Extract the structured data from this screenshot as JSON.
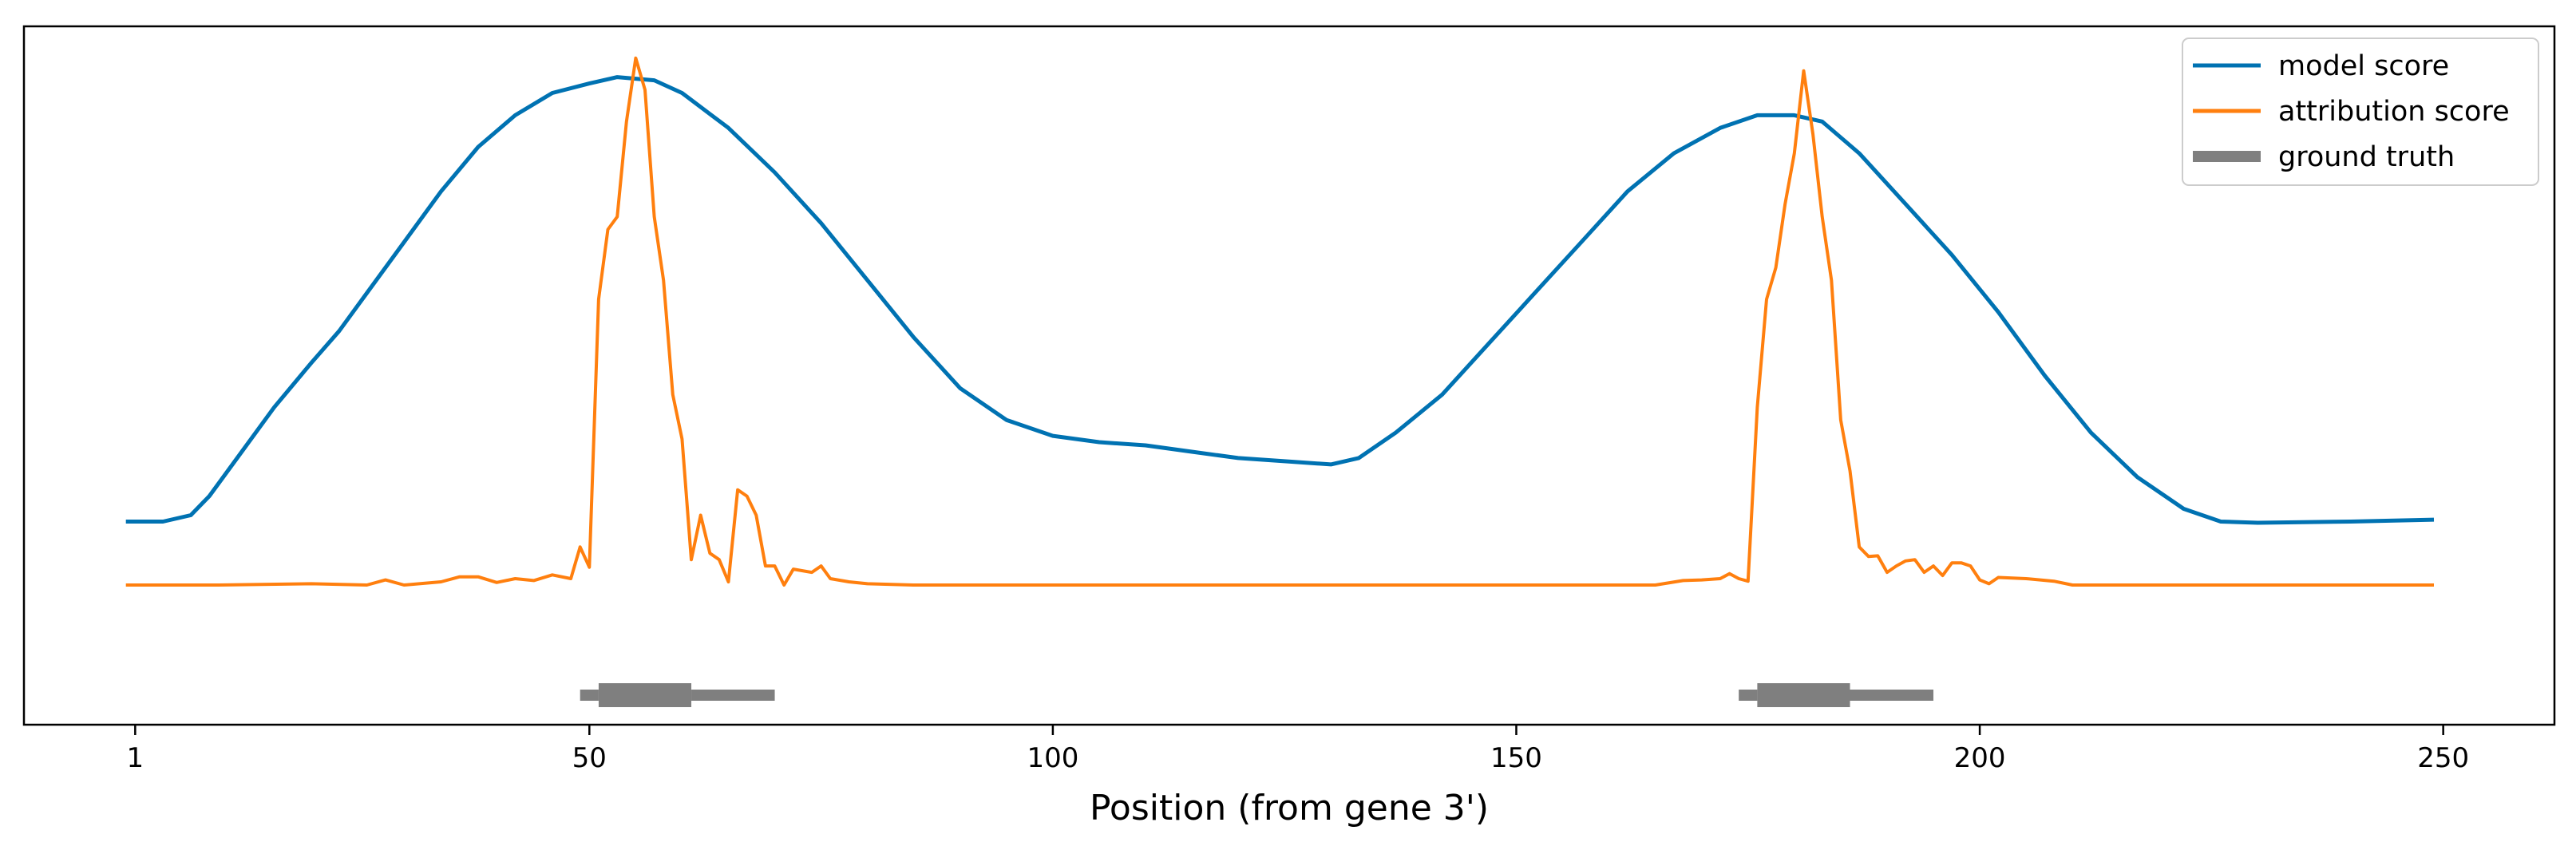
{
  "chart_data": {
    "type": "line",
    "xlabel": "Position (from gene 3')",
    "ylabel": "",
    "title": "",
    "xlim": [
      -11,
      262
    ],
    "ylim": [
      -0.1,
      1.0
    ],
    "x_ticks": [
      1,
      50,
      100,
      150,
      200,
      250
    ],
    "grid": false,
    "legend_position": "top-right",
    "series": [
      {
        "name": "model score",
        "color": "#0072b2",
        "style": "line",
        "points": [
          [
            0,
            0.22
          ],
          [
            4,
            0.22
          ],
          [
            7,
            0.23
          ],
          [
            9,
            0.26
          ],
          [
            12,
            0.32
          ],
          [
            16,
            0.4
          ],
          [
            20,
            0.47
          ],
          [
            23,
            0.52
          ],
          [
            26,
            0.58
          ],
          [
            30,
            0.66
          ],
          [
            34,
            0.74
          ],
          [
            38,
            0.81
          ],
          [
            42,
            0.86
          ],
          [
            46,
            0.895
          ],
          [
            50,
            0.91
          ],
          [
            53,
            0.92
          ],
          [
            57,
            0.915
          ],
          [
            60,
            0.895
          ],
          [
            65,
            0.84
          ],
          [
            70,
            0.77
          ],
          [
            75,
            0.69
          ],
          [
            80,
            0.6
          ],
          [
            85,
            0.51
          ],
          [
            90,
            0.43
          ],
          [
            95,
            0.38
          ],
          [
            100,
            0.355
          ],
          [
            105,
            0.345
          ],
          [
            110,
            0.34
          ],
          [
            115,
            0.33
          ],
          [
            120,
            0.32
          ],
          [
            125,
            0.315
          ],
          [
            130,
            0.31
          ],
          [
            133,
            0.32
          ],
          [
            137,
            0.36
          ],
          [
            142,
            0.42
          ],
          [
            147,
            0.5
          ],
          [
            152,
            0.58
          ],
          [
            157,
            0.66
          ],
          [
            162,
            0.74
          ],
          [
            167,
            0.8
          ],
          [
            172,
            0.84
          ],
          [
            176,
            0.86
          ],
          [
            180,
            0.86
          ],
          [
            183,
            0.85
          ],
          [
            187,
            0.8
          ],
          [
            192,
            0.72
          ],
          [
            197,
            0.64
          ],
          [
            202,
            0.55
          ],
          [
            207,
            0.45
          ],
          [
            212,
            0.36
          ],
          [
            217,
            0.29
          ],
          [
            222,
            0.24
          ],
          [
            226,
            0.22
          ],
          [
            230,
            0.218
          ],
          [
            240,
            0.22
          ],
          [
            249,
            0.223
          ]
        ]
      },
      {
        "name": "attribution score",
        "color": "#ff7f0e",
        "style": "line",
        "points": [
          [
            0,
            0.12
          ],
          [
            10,
            0.12
          ],
          [
            20,
            0.122
          ],
          [
            26,
            0.12
          ],
          [
            28,
            0.128
          ],
          [
            30,
            0.12
          ],
          [
            34,
            0.125
          ],
          [
            36,
            0.133
          ],
          [
            38,
            0.133
          ],
          [
            40,
            0.124
          ],
          [
            42,
            0.13
          ],
          [
            44,
            0.127
          ],
          [
            46,
            0.136
          ],
          [
            48,
            0.13
          ],
          [
            49,
            0.18
          ],
          [
            50,
            0.148
          ],
          [
            51,
            0.57
          ],
          [
            52,
            0.68
          ],
          [
            53,
            0.7
          ],
          [
            54,
            0.85
          ],
          [
            55,
            0.95
          ],
          [
            56,
            0.9
          ],
          [
            57,
            0.7
          ],
          [
            58,
            0.6
          ],
          [
            59,
            0.42
          ],
          [
            60,
            0.35
          ],
          [
            61,
            0.16
          ],
          [
            62,
            0.23
          ],
          [
            63,
            0.17
          ],
          [
            64,
            0.16
          ],
          [
            65,
            0.125
          ],
          [
            66,
            0.27
          ],
          [
            67,
            0.26
          ],
          [
            68,
            0.23
          ],
          [
            69,
            0.15
          ],
          [
            70,
            0.15
          ],
          [
            71,
            0.12
          ],
          [
            72,
            0.145
          ],
          [
            74,
            0.14
          ],
          [
            75,
            0.15
          ],
          [
            76,
            0.13
          ],
          [
            78,
            0.125
          ],
          [
            80,
            0.122
          ],
          [
            85,
            0.12
          ],
          [
            100,
            0.12
          ],
          [
            140,
            0.12
          ],
          [
            160,
            0.12
          ],
          [
            165,
            0.12
          ],
          [
            168,
            0.127
          ],
          [
            170,
            0.128
          ],
          [
            172,
            0.13
          ],
          [
            173,
            0.138
          ],
          [
            174,
            0.13
          ],
          [
            175,
            0.126
          ],
          [
            176,
            0.4
          ],
          [
            177,
            0.57
          ],
          [
            178,
            0.62
          ],
          [
            179,
            0.72
          ],
          [
            180,
            0.8
          ],
          [
            181,
            0.93
          ],
          [
            182,
            0.83
          ],
          [
            183,
            0.7
          ],
          [
            184,
            0.6
          ],
          [
            185,
            0.38
          ],
          [
            186,
            0.3
          ],
          [
            187,
            0.18
          ],
          [
            188,
            0.165
          ],
          [
            189,
            0.166
          ],
          [
            190,
            0.14
          ],
          [
            191,
            0.15
          ],
          [
            192,
            0.158
          ],
          [
            193,
            0.16
          ],
          [
            194,
            0.14
          ],
          [
            195,
            0.15
          ],
          [
            196,
            0.135
          ],
          [
            197,
            0.155
          ],
          [
            198,
            0.155
          ],
          [
            199,
            0.15
          ],
          [
            200,
            0.128
          ],
          [
            201,
            0.122
          ],
          [
            202,
            0.132
          ],
          [
            205,
            0.13
          ],
          [
            208,
            0.126
          ],
          [
            210,
            0.12
          ],
          [
            212,
            0.12
          ],
          [
            220,
            0.12
          ],
          [
            249,
            0.12
          ]
        ]
      },
      {
        "name": "ground truth",
        "color": "#7f7f7f",
        "style": "segments",
        "segments": [
          {
            "x": [
              49,
              51
            ],
            "weight": "thin"
          },
          {
            "x": [
              51,
              61
            ],
            "weight": "thick"
          },
          {
            "x": [
              61,
              70
            ],
            "weight": "thin"
          },
          {
            "x": [
              174,
              176
            ],
            "weight": "thin"
          },
          {
            "x": [
              176,
              186
            ],
            "weight": "thick"
          },
          {
            "x": [
              186,
              195
            ],
            "weight": "thin"
          }
        ]
      }
    ]
  }
}
